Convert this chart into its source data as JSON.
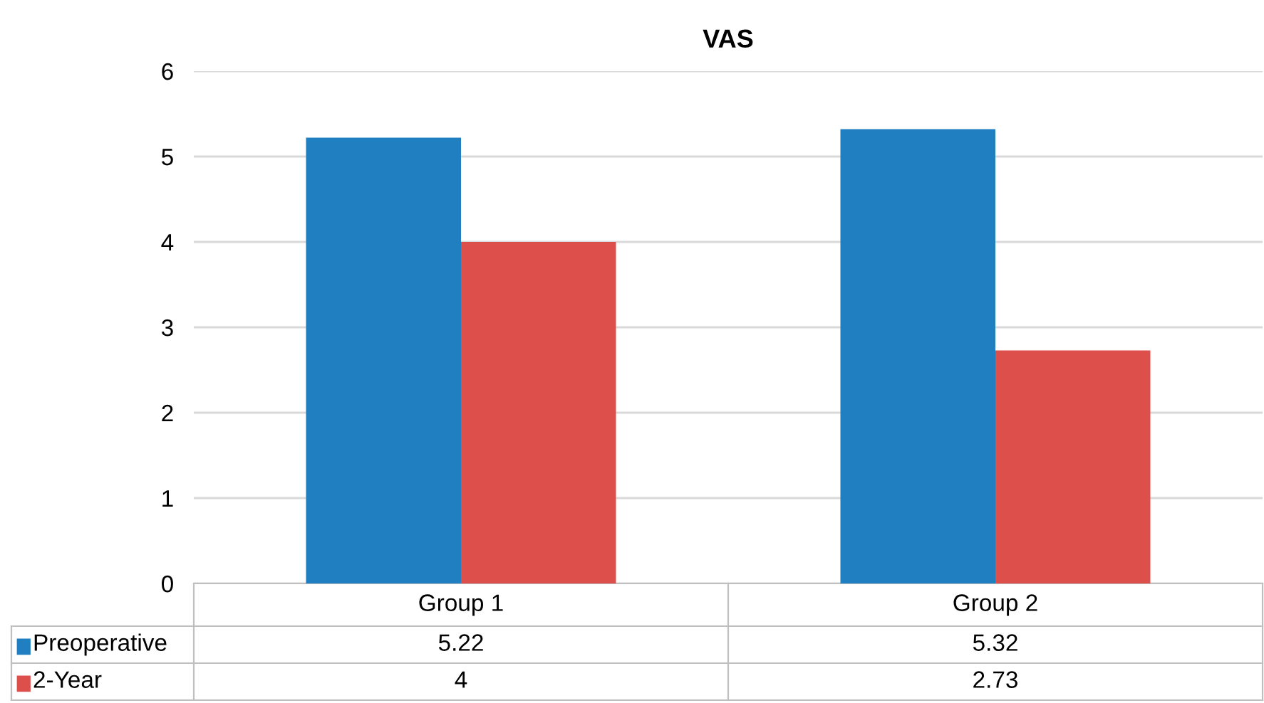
{
  "chart_data": {
    "type": "bar",
    "title": "VAS",
    "categories": [
      "Group 1",
      "Group 2"
    ],
    "series": [
      {
        "name": "Preoperative",
        "color": "#1f7fc0",
        "values": [
          5.22,
          5.32
        ]
      },
      {
        "name": "2-Year",
        "color": "#dc4f4b",
        "values": [
          4,
          2.73
        ]
      }
    ],
    "value_labels": [
      [
        "5.22",
        "5.32"
      ],
      [
        "4",
        "2.73"
      ]
    ],
    "ylim": [
      0,
      6
    ],
    "yticks": [
      0,
      1,
      2,
      3,
      4,
      5,
      6
    ],
    "grid": "y",
    "legend": "bottom"
  }
}
